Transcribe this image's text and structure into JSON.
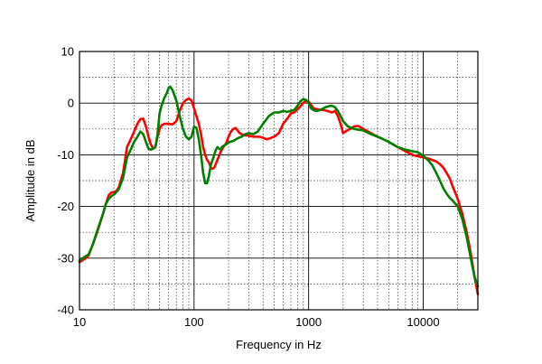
{
  "chart_data": {
    "type": "line",
    "title": "",
    "xlabel": "Frequency in Hz",
    "ylabel": "Amplitude in dB",
    "xscale": "log",
    "xlim": [
      10,
      30000
    ],
    "ylim": [
      -40,
      10
    ],
    "grid": true,
    "legend": "none",
    "x_tick_labels": [
      "10",
      "100",
      "1000",
      "10000"
    ],
    "y_tick_labels": [
      "10",
      "0",
      "-10",
      "-20",
      "-30",
      "-40"
    ],
    "x_ticks": [
      10,
      100,
      1000,
      10000
    ],
    "y_ticks": [
      10,
      0,
      -10,
      -20,
      -30,
      -40
    ],
    "series": [
      {
        "color": "#ff0000",
        "points": [
          [
            10,
            -30.8
          ],
          [
            11,
            -30.2
          ],
          [
            12,
            -29.5
          ],
          [
            13,
            -27.5
          ],
          [
            14,
            -25.5
          ],
          [
            15,
            -23.5
          ],
          [
            16,
            -21.5
          ],
          [
            17,
            -19.5
          ],
          [
            18,
            -17.8
          ],
          [
            19,
            -17.3
          ],
          [
            20,
            -17.2
          ],
          [
            21,
            -17.0
          ],
          [
            22,
            -16.3
          ],
          [
            24,
            -13.5
          ],
          [
            26,
            -8.5
          ],
          [
            28,
            -7.0
          ],
          [
            30,
            -5.5
          ],
          [
            32,
            -4.0
          ],
          [
            34,
            -3.1
          ],
          [
            36,
            -3.0
          ],
          [
            38,
            -4.5
          ],
          [
            40,
            -6.5
          ],
          [
            42,
            -8.0
          ],
          [
            44,
            -8.8
          ],
          [
            46,
            -8.5
          ],
          [
            48,
            -6.5
          ],
          [
            50,
            -5.0
          ],
          [
            52,
            -4.3
          ],
          [
            55,
            -4.0
          ],
          [
            60,
            -4.0
          ],
          [
            65,
            -4.1
          ],
          [
            70,
            -3.5
          ],
          [
            75,
            -1.5
          ],
          [
            80,
            0.0
          ],
          [
            85,
            0.6
          ],
          [
            90,
            0.9
          ],
          [
            95,
            0.5
          ],
          [
            100,
            -1.0
          ],
          [
            105,
            -2.5
          ],
          [
            110,
            -4.0
          ],
          [
            115,
            -6.0
          ],
          [
            120,
            -8.5
          ],
          [
            125,
            -10.0
          ],
          [
            130,
            -11.0
          ],
          [
            135,
            -11.5
          ],
          [
            140,
            -12.5
          ],
          [
            145,
            -12.7
          ],
          [
            150,
            -12.5
          ],
          [
            160,
            -11.0
          ],
          [
            170,
            -9.5
          ],
          [
            180,
            -8.5
          ],
          [
            190,
            -7.8
          ],
          [
            200,
            -6.5
          ],
          [
            210,
            -5.5
          ],
          [
            220,
            -5.0
          ],
          [
            230,
            -4.8
          ],
          [
            240,
            -5.3
          ],
          [
            250,
            -5.8
          ],
          [
            270,
            -6.2
          ],
          [
            300,
            -6.3
          ],
          [
            330,
            -6.5
          ],
          [
            370,
            -6.5
          ],
          [
            400,
            -6.7
          ],
          [
            430,
            -7.0
          ],
          [
            460,
            -6.8
          ],
          [
            500,
            -6.5
          ],
          [
            550,
            -5.8
          ],
          [
            600,
            -4.0
          ],
          [
            650,
            -3.0
          ],
          [
            700,
            -2.0
          ],
          [
            750,
            -1.8
          ],
          [
            800,
            -1.2
          ],
          [
            850,
            -0.6
          ],
          [
            900,
            0.1
          ],
          [
            950,
            0.4
          ],
          [
            1000,
            0.3
          ],
          [
            1050,
            -0.3
          ],
          [
            1100,
            -1.0
          ],
          [
            1200,
            -1.2
          ],
          [
            1300,
            -1.3
          ],
          [
            1400,
            -1.4
          ],
          [
            1500,
            -1.6
          ],
          [
            1600,
            -1.8
          ],
          [
            1700,
            -1.5
          ],
          [
            1800,
            -2.5
          ],
          [
            1900,
            -4.0
          ],
          [
            2000,
            -5.8
          ],
          [
            2100,
            -5.5
          ],
          [
            2200,
            -5.2
          ],
          [
            2300,
            -5.0
          ],
          [
            2500,
            -4.5
          ],
          [
            2700,
            -4.4
          ],
          [
            3000,
            -5.0
          ],
          [
            3500,
            -5.8
          ],
          [
            4000,
            -6.5
          ],
          [
            4500,
            -7.0
          ],
          [
            5000,
            -7.5
          ],
          [
            6000,
            -8.5
          ],
          [
            7000,
            -9.3
          ],
          [
            8000,
            -10.0
          ],
          [
            9000,
            -10.3
          ],
          [
            10000,
            -10.5
          ],
          [
            11000,
            -10.7
          ],
          [
            12000,
            -11.0
          ],
          [
            13000,
            -11.3
          ],
          [
            14000,
            -11.8
          ],
          [
            15000,
            -12.5
          ],
          [
            16000,
            -13.5
          ],
          [
            17000,
            -14.5
          ],
          [
            18000,
            -16.0
          ],
          [
            20000,
            -18.5
          ],
          [
            22000,
            -21.5
          ],
          [
            24000,
            -25.0
          ],
          [
            26000,
            -29.0
          ],
          [
            28000,
            -33.5
          ],
          [
            30000,
            -37.0
          ]
        ]
      },
      {
        "color": "#008000",
        "points": [
          [
            10,
            -30.5
          ],
          [
            11,
            -29.8
          ],
          [
            12,
            -29.3
          ],
          [
            13,
            -27.5
          ],
          [
            14,
            -25.3
          ],
          [
            15,
            -23.3
          ],
          [
            16,
            -21.5
          ],
          [
            17,
            -19.5
          ],
          [
            18,
            -18.5
          ],
          [
            19,
            -18.0
          ],
          [
            20,
            -17.7
          ],
          [
            22,
            -16.7
          ],
          [
            24,
            -14.5
          ],
          [
            26,
            -10.5
          ],
          [
            28,
            -9.0
          ],
          [
            30,
            -7.5
          ],
          [
            32,
            -6.5
          ],
          [
            34,
            -5.5
          ],
          [
            36,
            -6.0
          ],
          [
            38,
            -7.5
          ],
          [
            40,
            -8.8
          ],
          [
            42,
            -9.0
          ],
          [
            44,
            -8.8
          ],
          [
            46,
            -8.5
          ],
          [
            48,
            -6.0
          ],
          [
            50,
            -2.0
          ],
          [
            52,
            -0.5
          ],
          [
            55,
            1.0
          ],
          [
            58,
            2.0
          ],
          [
            60,
            3.0
          ],
          [
            62,
            3.2
          ],
          [
            65,
            2.5
          ],
          [
            70,
            0.5
          ],
          [
            75,
            -2.5
          ],
          [
            80,
            -5.0
          ],
          [
            85,
            -6.5
          ],
          [
            90,
            -7.0
          ],
          [
            95,
            -6.5
          ],
          [
            100,
            -4.5
          ],
          [
            105,
            -4.8
          ],
          [
            110,
            -7.0
          ],
          [
            115,
            -10.0
          ],
          [
            120,
            -13.5
          ],
          [
            125,
            -15.5
          ],
          [
            130,
            -15.5
          ],
          [
            135,
            -14.0
          ],
          [
            140,
            -12.0
          ],
          [
            145,
            -11.0
          ],
          [
            150,
            -10.0
          ],
          [
            155,
            -9.0
          ],
          [
            160,
            -8.5
          ],
          [
            165,
            -8.8
          ],
          [
            170,
            -9.0
          ],
          [
            175,
            -8.5
          ],
          [
            180,
            -8.3
          ],
          [
            190,
            -8.0
          ],
          [
            200,
            -7.6
          ],
          [
            220,
            -7.3
          ],
          [
            240,
            -6.8
          ],
          [
            260,
            -6.5
          ],
          [
            280,
            -6.0
          ],
          [
            300,
            -5.8
          ],
          [
            330,
            -6.0
          ],
          [
            360,
            -5.5
          ],
          [
            400,
            -4.0
          ],
          [
            450,
            -2.5
          ],
          [
            500,
            -1.8
          ],
          [
            550,
            -1.8
          ],
          [
            600,
            -1.5
          ],
          [
            650,
            -1.7
          ],
          [
            700,
            -1.5
          ],
          [
            750,
            -1.3
          ],
          [
            800,
            -0.5
          ],
          [
            850,
            0.4
          ],
          [
            900,
            0.8
          ],
          [
            950,
            0.6
          ],
          [
            1000,
            0.1
          ],
          [
            1050,
            -1.0
          ],
          [
            1100,
            -1.3
          ],
          [
            1150,
            -1.5
          ],
          [
            1200,
            -1.5
          ],
          [
            1300,
            -1.2
          ],
          [
            1400,
            -0.8
          ],
          [
            1500,
            -0.6
          ],
          [
            1600,
            -0.5
          ],
          [
            1700,
            -0.8
          ],
          [
            1800,
            -1.5
          ],
          [
            1900,
            -2.5
          ],
          [
            2000,
            -3.5
          ],
          [
            2200,
            -4.5
          ],
          [
            2500,
            -5.0
          ],
          [
            3000,
            -5.3
          ],
          [
            3500,
            -6.0
          ],
          [
            4000,
            -6.5
          ],
          [
            4500,
            -7.0
          ],
          [
            5000,
            -7.5
          ],
          [
            6000,
            -8.5
          ],
          [
            7000,
            -9.0
          ],
          [
            8000,
            -9.3
          ],
          [
            9000,
            -9.5
          ],
          [
            10000,
            -10.2
          ],
          [
            11000,
            -11.0
          ],
          [
            12000,
            -12.0
          ],
          [
            13000,
            -13.5
          ],
          [
            14000,
            -15.0
          ],
          [
            15000,
            -16.5
          ],
          [
            16000,
            -17.5
          ],
          [
            17000,
            -18.3
          ],
          [
            18000,
            -18.8
          ],
          [
            20000,
            -20.0
          ],
          [
            22000,
            -22.5
          ],
          [
            24000,
            -26.0
          ],
          [
            26000,
            -30.0
          ],
          [
            28000,
            -33.5
          ],
          [
            30000,
            -35.5
          ]
        ]
      }
    ]
  }
}
